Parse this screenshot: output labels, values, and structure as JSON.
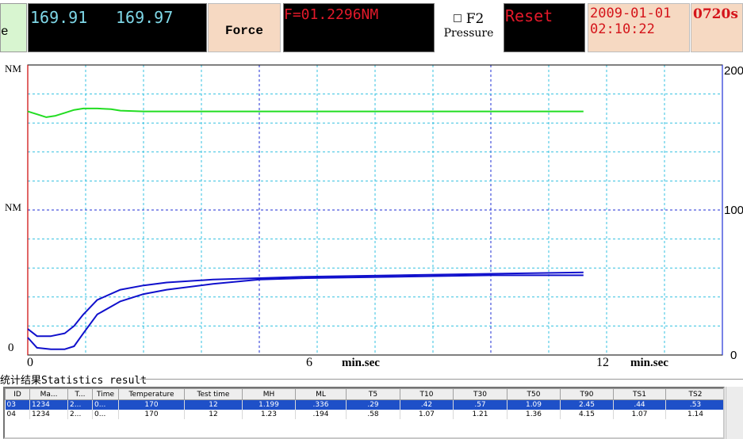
{
  "toolbar": {
    "left_button_label": "e",
    "temperature_1": "169.91",
    "temperature_2": "169.97",
    "force_button_label": "Force",
    "force_value": "F=01.2296NM",
    "f2_label": "F2",
    "pressure_label": "Pressure",
    "reset_label": "Reset",
    "date": "2009-01-01",
    "time": "02:10:22",
    "timer": "0720s"
  },
  "colors": {
    "torque_axis": "#cc0000",
    "temperature_axis": "#1f2fd6",
    "upper_curve": "#22dd22",
    "lower_curve": "#1010cc",
    "grid": "#33c0e0",
    "selected_row": "#1e50c8"
  },
  "chart_data": {
    "type": "line",
    "xlabel": "min.sec",
    "x_ticks": [
      "0",
      "6",
      "12"
    ],
    "xlim": [
      0,
      15
    ],
    "y_left_labels": [
      "NM",
      "NM",
      "0"
    ],
    "y_right_ticks": [
      "200",
      "100",
      "0"
    ],
    "ylim_right": [
      0,
      200
    ],
    "grid": true,
    "series": [
      {
        "x": [
          0,
          0.2,
          0.4,
          0.6,
          0.8,
          1.0,
          1.2,
          1.5,
          1.8,
          2.0,
          2.5,
          3,
          4,
          6,
          8,
          10,
          12
        ],
        "y": [
          168,
          166,
          164,
          165,
          167,
          169,
          170,
          170,
          169.5,
          168.5,
          168,
          168,
          168,
          168,
          168,
          168,
          168
        ]
      },
      {
        "x": [
          0,
          0.2,
          0.5,
          0.8,
          1.0,
          1.2,
          1.5,
          2.0,
          2.5,
          3,
          4,
          5,
          6,
          8,
          10,
          12
        ],
        "y": [
          18,
          13,
          13,
          15,
          20,
          28,
          38,
          45,
          48,
          50,
          52,
          53,
          54,
          55,
          56,
          57
        ]
      },
      {
        "x": [
          0,
          0.2,
          0.5,
          0.8,
          1.0,
          1.2,
          1.5,
          2.0,
          2.5,
          3,
          4,
          5,
          6,
          8,
          10,
          12
        ],
        "y": [
          12,
          5,
          4,
          4,
          6,
          15,
          28,
          37,
          42,
          45,
          49,
          52,
          53,
          54,
          55,
          55
        ]
      }
    ]
  },
  "stats": {
    "title": "统计结果Statistics result",
    "columns": [
      "ID",
      "Ma...",
      "T...",
      "Time",
      "Temperature",
      "Test time",
      "MH",
      "ML",
      "T5",
      "T10",
      "T30",
      "T50",
      "T90",
      "TS1",
      "TS2"
    ],
    "rows": [
      [
        "03",
        "1234",
        "2...",
        "0...",
        "170",
        "12",
        "1.199",
        ".336",
        ".29",
        ".42",
        ".57",
        "1.09",
        "2.45",
        ".44",
        ".53"
      ],
      [
        "04",
        "1234",
        "2...",
        "0...",
        "170",
        "12",
        "1.23",
        ".194",
        ".58",
        "1.07",
        "1.21",
        "1.36",
        "4.15",
        "1.07",
        "1.14"
      ]
    ]
  }
}
